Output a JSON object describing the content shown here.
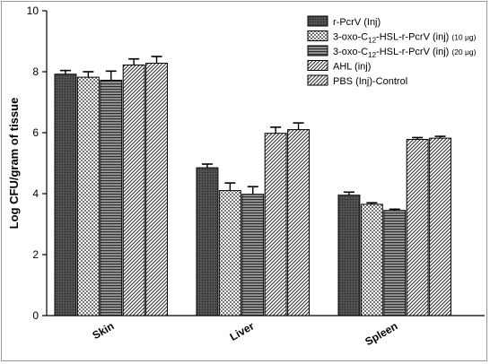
{
  "chart_data": {
    "type": "bar",
    "ylabel": "Log CFU/gram of tissue",
    "xlabel": "",
    "ylim": [
      0,
      10
    ],
    "yticks": [
      0,
      2,
      4,
      6,
      8,
      10
    ],
    "categories": [
      "Skin",
      "Liver",
      "Spleen"
    ],
    "legend_position": "top-right",
    "series": [
      {
        "name": "r-PcrV (Inj)",
        "values": [
          7.92,
          4.85,
          3.95
        ],
        "errors": [
          0.12,
          0.12,
          0.1
        ],
        "pattern": "dots-dark"
      },
      {
        "name": "3-oxo-C12-HSL-r-PcrV (inj) (10 μg)",
        "values": [
          7.82,
          4.1,
          3.65
        ],
        "errors": [
          0.18,
          0.25,
          0.05
        ],
        "pattern": "checker"
      },
      {
        "name": "3-oxo-C12-HSL-r-PcrV (inj) (20 μg)",
        "values": [
          7.72,
          3.98,
          3.45
        ],
        "errors": [
          0.3,
          0.25,
          0.04
        ],
        "pattern": "hlines"
      },
      {
        "name": "AHL (inj)",
        "values": [
          8.22,
          5.98,
          5.78
        ],
        "errors": [
          0.2,
          0.2,
          0.06
        ],
        "pattern": "diag"
      },
      {
        "name": "PBS (Inj)-Control",
        "values": [
          8.28,
          6.1,
          5.82
        ],
        "errors": [
          0.22,
          0.22,
          0.06
        ],
        "pattern": "diag"
      }
    ],
    "legend_entries": [
      {
        "main": "r-PcrV (Inj)",
        "sub": "",
        "mid": "",
        "suffix": ""
      },
      {
        "main": "3-oxo-C",
        "sub": "12",
        "mid": "-HSL-r-PcrV (inj) ",
        "suffix": "(10 μg)"
      },
      {
        "main": "3-oxo-C",
        "sub": "12",
        "mid": "-HSL-r-PcrV (inj) ",
        "suffix": "(20 μg)"
      },
      {
        "main": "AHL (inj)",
        "sub": "",
        "mid": "",
        "suffix": ""
      },
      {
        "main": "PBS (Inj)-Control",
        "sub": "",
        "mid": "",
        "suffix": ""
      }
    ],
    "grid": false
  }
}
